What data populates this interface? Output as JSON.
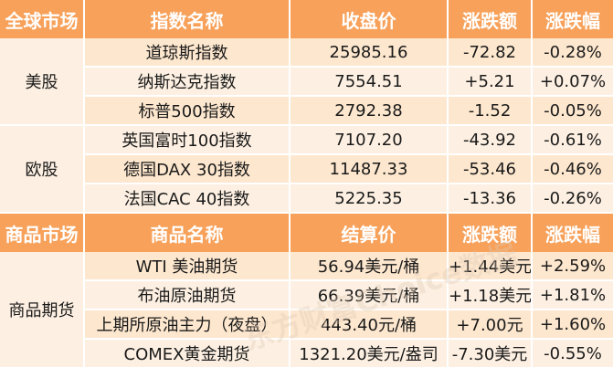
{
  "headers1": [
    "全球市场",
    "指数名称",
    "收盘价",
    "涨跌额",
    "涨跌幅"
  ],
  "stocks": [
    {
      "group": "美股",
      "rows": [
        {
          "name": "道琼斯指数",
          "close": "25985.16",
          "chg": "-72.82",
          "pct": "-0.28%"
        },
        {
          "name": "纳斯达克指数",
          "close": "7554.51",
          "chg": "+5.21",
          "pct": "+0.07%"
        },
        {
          "name": "标普500指数",
          "close": "2792.38",
          "chg": "-1.52",
          "pct": "-0.05%"
        }
      ]
    },
    {
      "group": "欧股",
      "rows": [
        {
          "name": "英国富时100指数",
          "close": "7107.20",
          "chg": "-43.92",
          "pct": "-0.61%"
        },
        {
          "name": "德国DAX 30指数",
          "close": "11487.33",
          "chg": "-53.46",
          "pct": "-0.46%"
        },
        {
          "name": "法国CAC 40指数",
          "close": "5225.35",
          "chg": "-13.36",
          "pct": "-0.26%"
        }
      ]
    }
  ],
  "headers2": [
    "商品市场",
    "商品名称",
    "结算价",
    "涨跌额",
    "涨跌幅"
  ],
  "commodities": {
    "group": "商品期货",
    "rows": [
      {
        "name": "WTI 美油期货",
        "close": "56.94美元/桶",
        "chg": "+1.44美元",
        "pct": "+2.59%"
      },
      {
        "name": "布油原油期货",
        "close": "66.39美元/桶",
        "chg": "+1.18美元",
        "pct": "+1.81%"
      },
      {
        "name": "上期所原油主力（夜盘）",
        "close": "443.40元/桶",
        "chg": "+7.00元",
        "pct": "+1.60%"
      },
      {
        "name": "COMEX黄金期货",
        "close": "1321.20美元/盎司",
        "chg": "-7.30美元",
        "pct": "-0.55%"
      }
    ]
  },
  "watermark": "东方财富Choice数据"
}
